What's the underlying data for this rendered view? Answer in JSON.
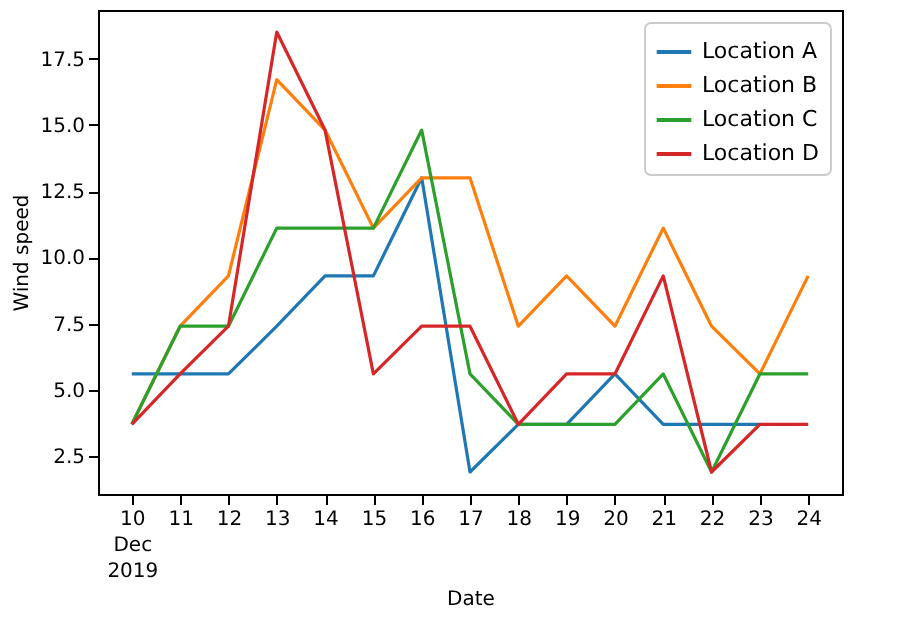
{
  "chart_data": {
    "type": "line",
    "xlabel": "Date",
    "ylabel": "Wind speed",
    "x": [
      "2019-12-10",
      "2019-12-11",
      "2019-12-12",
      "2019-12-13",
      "2019-12-14",
      "2019-12-15",
      "2019-12-16",
      "2019-12-17",
      "2019-12-18",
      "2019-12-19",
      "2019-12-20",
      "2019-12-21",
      "2019-12-22",
      "2019-12-23",
      "2019-12-24"
    ],
    "series": [
      {
        "name": "Location A",
        "color": "#1f77b4",
        "values": [
          5.6,
          5.6,
          5.6,
          7.4,
          9.3,
          9.3,
          13.0,
          1.9,
          3.7,
          3.7,
          5.6,
          3.7,
          3.7,
          3.7,
          null
        ]
      },
      {
        "name": "Location B",
        "color": "#ff7f0e",
        "values": [
          3.7,
          7.4,
          9.3,
          16.7,
          14.8,
          11.1,
          13.0,
          13.0,
          7.4,
          9.3,
          7.4,
          11.1,
          7.4,
          5.6,
          9.3
        ]
      },
      {
        "name": "Location C",
        "color": "#2ca02c",
        "values": [
          3.7,
          7.4,
          7.4,
          11.1,
          11.1,
          11.1,
          14.8,
          5.6,
          3.7,
          3.7,
          3.7,
          5.6,
          1.9,
          5.6,
          5.6
        ]
      },
      {
        "name": "Location D",
        "color": "#d62728",
        "values": [
          3.7,
          5.6,
          7.4,
          18.5,
          14.8,
          5.6,
          7.4,
          7.4,
          3.7,
          5.6,
          5.6,
          9.3,
          1.9,
          3.7,
          3.7
        ]
      }
    ],
    "xlim": [
      "2019-12-09T07:12",
      "2019-12-24T16:48"
    ],
    "xticks": [
      {
        "value": "2019-12-10",
        "label": "10\nDec\n2019"
      },
      {
        "value": "2019-12-11",
        "label": "11"
      },
      {
        "value": "2019-12-12",
        "label": "12"
      },
      {
        "value": "2019-12-13",
        "label": "13"
      },
      {
        "value": "2019-12-14",
        "label": "14"
      },
      {
        "value": "2019-12-15",
        "label": "15"
      },
      {
        "value": "2019-12-16",
        "label": "16"
      },
      {
        "value": "2019-12-17",
        "label": "17"
      },
      {
        "value": "2019-12-18",
        "label": "18"
      },
      {
        "value": "2019-12-19",
        "label": "19"
      },
      {
        "value": "2019-12-20",
        "label": "20"
      },
      {
        "value": "2019-12-21",
        "label": "21"
      },
      {
        "value": "2019-12-22",
        "label": "22"
      },
      {
        "value": "2019-12-23",
        "label": "23"
      },
      {
        "value": "2019-12-24",
        "label": "24"
      }
    ],
    "ylim": [
      1.07,
      19.33
    ],
    "yticks": [
      2.5,
      {
        "value": 5,
        "label": "5.0"
      },
      7.5,
      {
        "value": 10,
        "label": "10.0"
      },
      12.5,
      {
        "value": 15,
        "label": "15.0"
      },
      17.5
    ],
    "grid": false,
    "legend": "top right",
    "marker": "none",
    "line_style": "solid"
  }
}
